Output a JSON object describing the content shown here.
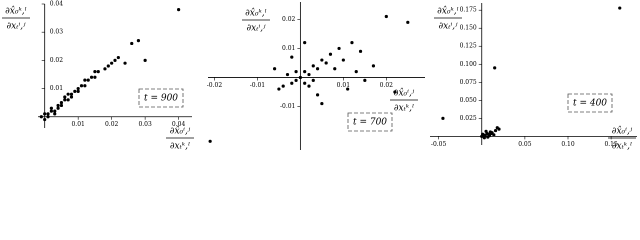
{
  "chart_data": [
    {
      "type": "scatter",
      "annotation": "t = 900",
      "color": "#000000",
      "ylabel": {
        "num": "∂x̂₀ᵏ,ˡ",
        "den": "∂xₜⁱ,ʲ"
      },
      "xlabel": {
        "num": "∂x̂₀ⁱ,ʲ",
        "den": "∂xₜᵏ,ˡ"
      },
      "xlim": [
        -0.002,
        0.044
      ],
      "ylim": [
        -0.004,
        0.04
      ],
      "xticks": [
        0.01,
        0.02,
        0.03,
        0.04
      ],
      "yticks": [
        0.01,
        0.02,
        0.03,
        0.04
      ],
      "x": [
        0.001,
        0.002,
        0.003,
        0.004,
        0.005,
        0.006,
        0.007,
        0.008,
        0.009,
        0.01,
        0.011,
        0.012,
        0.013,
        0.014,
        0.015,
        0.016,
        0.018,
        0.02,
        0.022,
        0.024,
        0.026,
        0.028,
        0.03,
        0.04,
        0.0,
        0.001,
        0.002,
        0.003,
        0.004,
        0.006,
        0.008,
        0.01,
        0.012,
        0.015,
        0.019,
        0.021,
        -0.001,
        0.0,
        0.005,
        0.007
      ],
      "y": [
        0.001,
        0.002,
        0.002,
        0.004,
        0.005,
        0.006,
        0.006,
        0.008,
        0.009,
        0.01,
        0.011,
        0.011,
        0.013,
        0.014,
        0.014,
        0.016,
        0.017,
        0.019,
        0.021,
        0.019,
        0.026,
        0.027,
        0.02,
        0.038,
        -0.001,
        0.0,
        0.003,
        0.001,
        0.003,
        0.007,
        0.007,
        0.009,
        0.013,
        0.016,
        0.018,
        0.02,
        0.0,
        0.001,
        0.004,
        0.008
      ]
    },
    {
      "type": "scatter",
      "annotation": "t = 700",
      "color": "#000000",
      "ylabel": {
        "num": "∂x̂₀ᵏ,ˡ",
        "den": "∂xₜⁱ,ʲ"
      },
      "xlabel": {
        "num": "∂x̂₀ⁱ,ʲ",
        "den": "∂xₜᵏ,ˡ"
      },
      "xlim": [
        -0.0215,
        0.029
      ],
      "ylim": [
        -0.025,
        0.026
      ],
      "xticks": [
        -0.02,
        -0.01,
        0.01,
        0.02
      ],
      "yticks": [
        -0.01,
        0.01,
        0.02
      ],
      "x": [
        0,
        0.001,
        -0.001,
        0.002,
        -0.002,
        0.003,
        -0.003,
        0.004,
        -0.004,
        0.005,
        0.006,
        -0.005,
        0.001,
        -0.001,
        0.002,
        0.003,
        0.007,
        0.008,
        0.01,
        0.012,
        0.014,
        0.015,
        0.017,
        0.02,
        0.025,
        0.022,
        -0.021,
        0.009,
        0.004,
        -0.006,
        0.011,
        0.013,
        0.005,
        -0.002,
        0.001
      ],
      "y": [
        0,
        0.002,
        -0.001,
        0.001,
        -0.002,
        0.004,
        0.001,
        0.003,
        -0.003,
        0.006,
        0.005,
        -0.004,
        -0.002,
        0.002,
        -0.003,
        -0.001,
        0.008,
        0.003,
        0.006,
        0.012,
        0.009,
        -0.001,
        0.004,
        0.021,
        0.019,
        -0.005,
        -0.022,
        0.01,
        -0.006,
        0.003,
        -0.004,
        0.002,
        -0.009,
        0.007,
        0.012
      ]
    },
    {
      "type": "scatter",
      "annotation": "t = 400",
      "color": "#000000",
      "ylabel": {
        "num": "∂x̂₀ᵏ,ˡ",
        "den": "∂xₜⁱ,ʲ"
      },
      "xlabel": {
        "num": "∂x̂₀ⁱ,ʲ",
        "den": "∂xₜᵏ,ˡ"
      },
      "xlim": [
        -0.06,
        0.18
      ],
      "ylim": [
        -0.012,
        0.185
      ],
      "xticks": [
        -0.05,
        0.05,
        {
          "value": 0.1,
          "label": "0.10"
        },
        0.15
      ],
      "yticks": [
        0.025,
        {
          "value": 0.05,
          "label": "0.050"
        },
        0.075,
        {
          "value": 0.1,
          "label": "0.100"
        },
        0.125,
        {
          "value": 0.15,
          "label": "0.150"
        },
        0.175
      ],
      "x": [
        0,
        0.002,
        0.004,
        0.006,
        0.008,
        0.01,
        0.012,
        0.014,
        0.016,
        0.018,
        0.02,
        0.003,
        0.005,
        0.007,
        0.001,
        0.009,
        0.015,
        0.16,
        -0.045,
        0.011
      ],
      "y": [
        0,
        0.002,
        0.001,
        0.004,
        0.003,
        0.006,
        0.005,
        0.002,
        0.008,
        0.012,
        0.01,
        -0.002,
        0.007,
        -0.001,
        0.003,
        0.001,
        0.095,
        0.178,
        0.025,
        0.004
      ]
    }
  ]
}
